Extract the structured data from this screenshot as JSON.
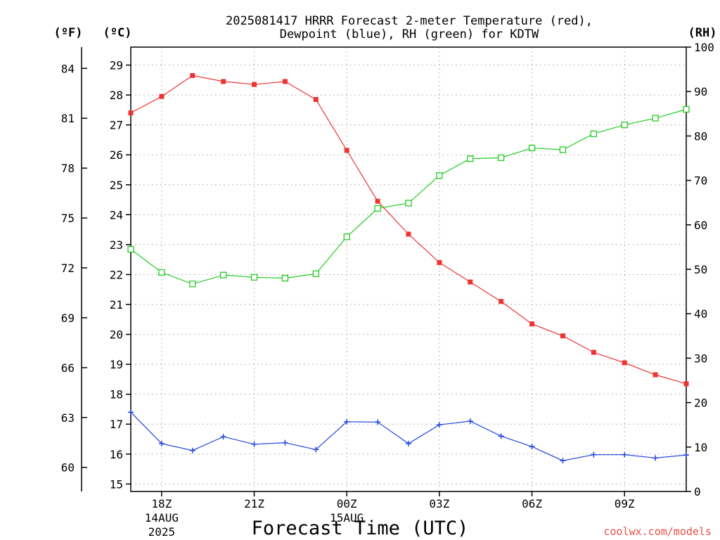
{
  "chart_data": {
    "type": "line",
    "title_line1": "2025081417 HRRR Forecast 2-meter Temperature (red),",
    "title_line2": "Dewpoint (blue), RH (green) for KDTW",
    "xlabel": "Forecast Time (UTC)",
    "credit": "coolwx.com/models",
    "unit_f": "(ºF)",
    "unit_c": "(ºC)",
    "unit_rh": "(RH)",
    "x_ticks": [
      {
        "hour": 18,
        "label": "18Z",
        "date_line1": "14AUG",
        "date_line2": "2025"
      },
      {
        "hour": 21,
        "label": "21Z"
      },
      {
        "hour": 24,
        "label": "00Z",
        "date_line1": "15AUG"
      },
      {
        "hour": 27,
        "label": "03Z"
      },
      {
        "hour": 30,
        "label": "06Z"
      },
      {
        "hour": 33,
        "label": "09Z"
      }
    ],
    "x_range": [
      17,
      35
    ],
    "y_celsius": {
      "range": [
        14.75,
        29.6
      ],
      "ticks": [
        15,
        16,
        17,
        18,
        19,
        20,
        21,
        22,
        23,
        24,
        25,
        26,
        27,
        28,
        29
      ]
    },
    "y_fahrenheit": {
      "ticks": [
        60,
        63,
        66,
        69,
        72,
        75,
        78,
        81,
        84
      ]
    },
    "y_rh": {
      "range": [
        0,
        100
      ],
      "ticks": [
        0,
        10,
        20,
        30,
        40,
        50,
        60,
        70,
        80,
        90,
        100
      ]
    },
    "x": [
      17,
      18,
      19,
      20,
      21,
      22,
      23,
      24,
      25,
      26,
      27,
      28,
      29,
      30,
      31,
      32,
      33,
      34,
      35
    ],
    "series": [
      {
        "key": "temperature",
        "color": "#ee3333",
        "marker": "filled-square",
        "axis": "celsius",
        "values": [
          27.4,
          27.95,
          28.65,
          28.45,
          28.35,
          28.45,
          27.85,
          26.15,
          24.45,
          23.35,
          22.4,
          21.75,
          21.1,
          20.35,
          19.95,
          19.4,
          19.05,
          18.65,
          18.35
        ]
      },
      {
        "key": "dewpoint",
        "color": "#2244dd",
        "marker": "plus",
        "axis": "celsius",
        "values": [
          17.4,
          16.35,
          16.12,
          16.58,
          16.33,
          16.38,
          16.15,
          17.08,
          17.07,
          16.35,
          16.98,
          17.1,
          16.6,
          16.25,
          15.78,
          15.98,
          15.98,
          15.87,
          15.97
        ]
      },
      {
        "key": "rh",
        "color": "#22cc22",
        "marker": "open-square",
        "axis": "rh",
        "values": [
          54.5,
          49.3,
          46.7,
          48.7,
          48.2,
          48.0,
          49.0,
          57.3,
          63.7,
          64.9,
          71.1,
          74.9,
          75.1,
          77.3,
          76.9,
          80.5,
          82.5,
          84.0,
          86.0
        ]
      }
    ]
  }
}
